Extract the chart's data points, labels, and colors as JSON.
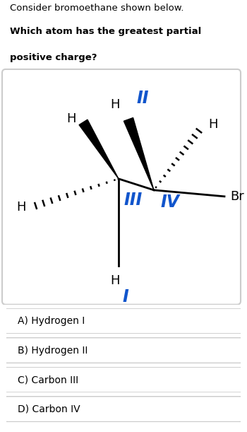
{
  "title_line1": "Consider bromoethane shown below.",
  "title_line2": "Which atom has the greatest partial",
  "title_line3": "positive charge?",
  "bg_color": "#ffffff",
  "label_color_blue": "#1155cc",
  "label_color_black": "#000000",
  "options": [
    "A) Hydrogen I",
    "B) Hydrogen II",
    "C) Carbon III",
    "D) Carbon IV"
  ],
  "fig_width": 3.5,
  "fig_height": 6.11,
  "dpi": 100
}
